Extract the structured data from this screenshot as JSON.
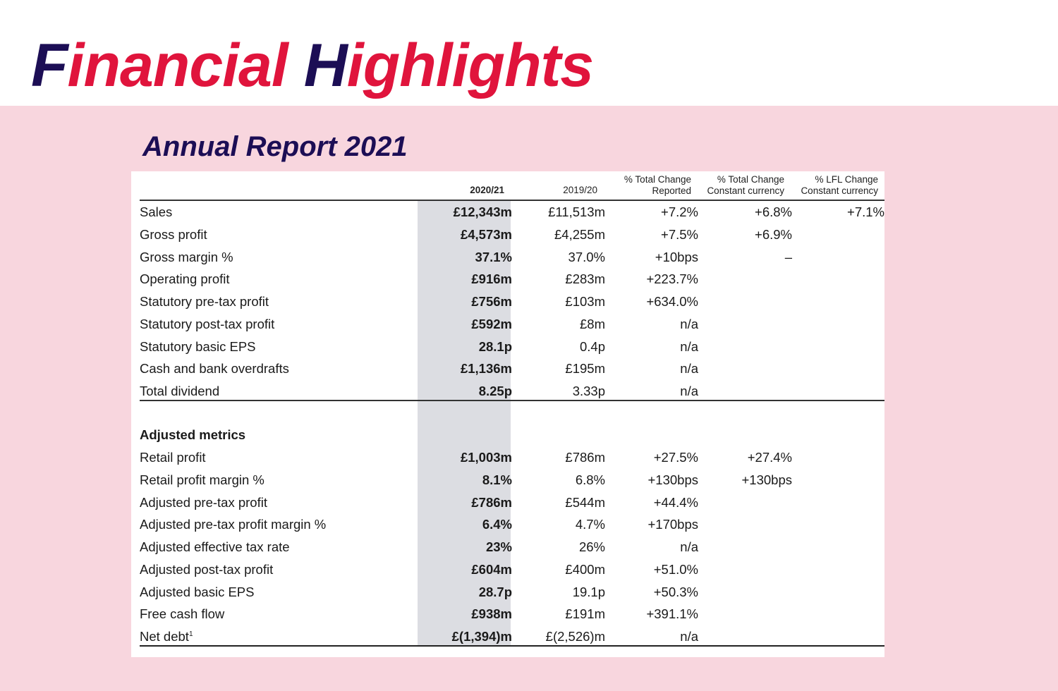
{
  "page": {
    "title_parts": [
      "F",
      "inancial ",
      "H",
      "ighlights"
    ],
    "subtitle": "Annual Report 2021"
  },
  "colors": {
    "navy": "#1c0e55",
    "red": "#e0143c",
    "band": "#f8d6de",
    "highlight_column": "#dcdde2"
  },
  "table": {
    "headers": {
      "col1": "2020/21",
      "col2": "2019/20",
      "col3": [
        "% Total Change",
        "Reported"
      ],
      "col4": [
        "% Total Change",
        "Constant currency"
      ],
      "col5": [
        "% LFL Change",
        "Constant currency"
      ]
    },
    "statutory_rows": [
      {
        "label": "Sales",
        "v2020": "£12,343m",
        "v2019": "£11,513m",
        "reported": "+7.2%",
        "constant": "+6.8%",
        "lfl": "+7.1%"
      },
      {
        "label": "Gross profit",
        "v2020": "£4,573m",
        "v2019": "£4,255m",
        "reported": "+7.5%",
        "constant": "+6.9%",
        "lfl": ""
      },
      {
        "label": "Gross margin %",
        "v2020": "37.1%",
        "v2019": "37.0%",
        "reported": "+10bps",
        "constant": "–",
        "lfl": ""
      },
      {
        "label": "Operating profit",
        "v2020": "£916m",
        "v2019": "£283m",
        "reported": "+223.7%",
        "constant": "",
        "lfl": ""
      },
      {
        "label": "Statutory pre-tax profit",
        "v2020": "£756m",
        "v2019": "£103m",
        "reported": "+634.0%",
        "constant": "",
        "lfl": ""
      },
      {
        "label": "Statutory post-tax profit",
        "v2020": "£592m",
        "v2019": "£8m",
        "reported": "n/a",
        "constant": "",
        "lfl": ""
      },
      {
        "label": "Statutory basic EPS",
        "v2020": "28.1p",
        "v2019": "0.4p",
        "reported": "n/a",
        "constant": "",
        "lfl": ""
      },
      {
        "label": "Cash and bank overdrafts",
        "v2020": "£1,136m",
        "v2019": "£195m",
        "reported": "n/a",
        "constant": "",
        "lfl": ""
      },
      {
        "label": "Total dividend",
        "v2020": "8.25p",
        "v2019": "3.33p",
        "reported": "n/a",
        "constant": "",
        "lfl": ""
      }
    ],
    "adjusted_heading": "Adjusted metrics",
    "adjusted_rows": [
      {
        "label": "Retail profit",
        "v2020": "£1,003m",
        "v2019": "£786m",
        "reported": "+27.5%",
        "constant": "+27.4%",
        "lfl": ""
      },
      {
        "label": "Retail profit margin %",
        "v2020": "8.1%",
        "v2019": "6.8%",
        "reported": "+130bps",
        "constant": "+130bps",
        "lfl": ""
      },
      {
        "label": "Adjusted pre-tax profit",
        "v2020": "£786m",
        "v2019": "£544m",
        "reported": "+44.4%",
        "constant": "",
        "lfl": ""
      },
      {
        "label": "Adjusted pre-tax profit margin %",
        "v2020": "6.4%",
        "v2019": "4.7%",
        "reported": "+170bps",
        "constant": "",
        "lfl": ""
      },
      {
        "label": "Adjusted effective tax rate",
        "v2020": "23%",
        "v2019": "26%",
        "reported": "n/a",
        "constant": "",
        "lfl": ""
      },
      {
        "label": "Adjusted post-tax profit",
        "v2020": "£604m",
        "v2019": "£400m",
        "reported": "+51.0%",
        "constant": "",
        "lfl": ""
      },
      {
        "label": "Adjusted basic EPS",
        "v2020": "28.7p",
        "v2019": "19.1p",
        "reported": "+50.3%",
        "constant": "",
        "lfl": ""
      },
      {
        "label": "Free cash flow",
        "v2020": "£938m",
        "v2019": "£191m",
        "reported": "+391.1%",
        "constant": "",
        "lfl": ""
      },
      {
        "label": "Net debt",
        "label_sup": "1",
        "v2020": "£(1,394)m",
        "v2019": "£(2,526)m",
        "reported": "n/a",
        "constant": "",
        "lfl": ""
      }
    ]
  }
}
